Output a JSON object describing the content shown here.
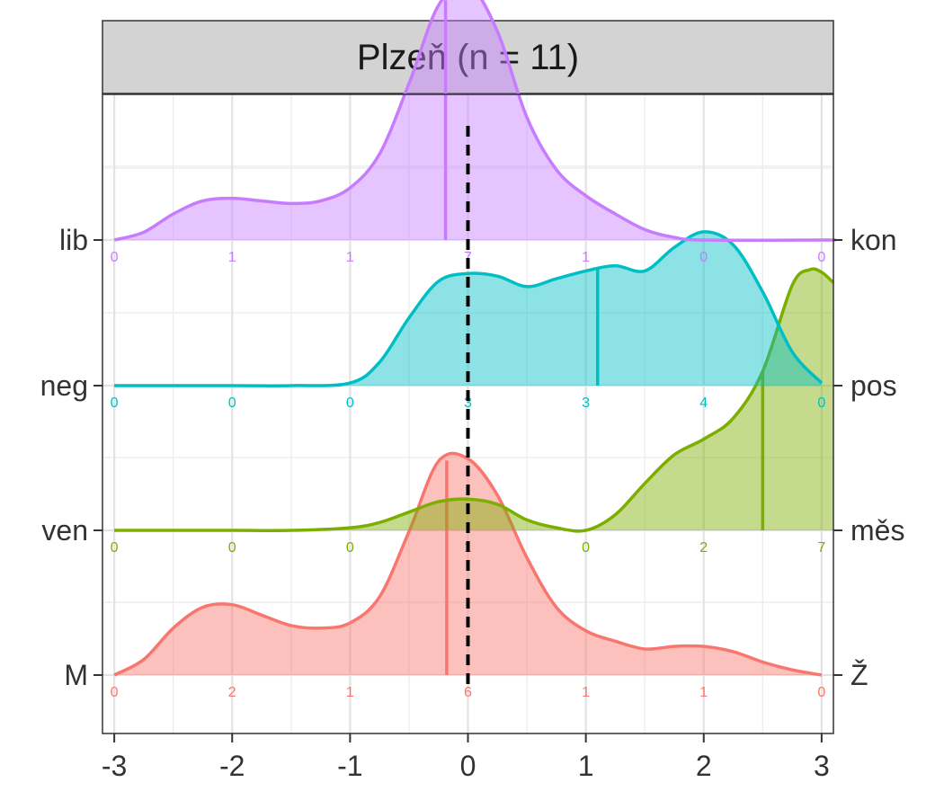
{
  "chart_data": {
    "type": "ridgeline",
    "title": "Plzeň (n = 11)",
    "xlabel": "",
    "ylabel": "",
    "xlim": [
      -3.1,
      3.1
    ],
    "x_ticks": [
      -3,
      -2,
      -1,
      0,
      1,
      2,
      3
    ],
    "x_tick_labels": [
      "-3",
      "-2",
      "-1",
      "0",
      "1",
      "2",
      "3"
    ],
    "reference_line_x": 0,
    "grid": true,
    "series": [
      {
        "left_label": "M",
        "right_label": "Ž",
        "color": "#F8766D",
        "mean": -0.18,
        "count_positions": [
          -3,
          -2,
          -1,
          0,
          1,
          2,
          3
        ],
        "counts": [
          "0",
          "2",
          "1",
          "6",
          "1",
          "1",
          "0"
        ],
        "density": [
          [
            -3.0,
            0.0
          ],
          [
            -2.75,
            0.06
          ],
          [
            -2.5,
            0.18
          ],
          [
            -2.25,
            0.26
          ],
          [
            -2.0,
            0.27
          ],
          [
            -1.75,
            0.23
          ],
          [
            -1.5,
            0.19
          ],
          [
            -1.25,
            0.18
          ],
          [
            -1.0,
            0.2
          ],
          [
            -0.75,
            0.3
          ],
          [
            -0.5,
            0.55
          ],
          [
            -0.25,
            0.82
          ],
          [
            0.0,
            0.83
          ],
          [
            0.25,
            0.69
          ],
          [
            0.5,
            0.45
          ],
          [
            0.75,
            0.26
          ],
          [
            1.0,
            0.17
          ],
          [
            1.25,
            0.13
          ],
          [
            1.5,
            0.1
          ],
          [
            1.75,
            0.11
          ],
          [
            2.0,
            0.11
          ],
          [
            2.25,
            0.09
          ],
          [
            2.5,
            0.05
          ],
          [
            2.75,
            0.02
          ],
          [
            3.0,
            0.0
          ]
        ]
      },
      {
        "left_label": "ven",
        "right_label": "měs",
        "color": "#7CAE00",
        "mean": 2.5,
        "count_positions": [
          -3,
          -2,
          -1,
          0,
          1,
          2,
          3
        ],
        "counts": [
          "0",
          "0",
          "0",
          "1",
          "0",
          "2",
          "7"
        ],
        "density": [
          [
            -3.0,
            0.0
          ],
          [
            -2.5,
            0.0
          ],
          [
            -2.0,
            0.0
          ],
          [
            -1.5,
            0.0
          ],
          [
            -1.0,
            0.01
          ],
          [
            -0.75,
            0.03
          ],
          [
            -0.5,
            0.07
          ],
          [
            -0.25,
            0.11
          ],
          [
            0.0,
            0.12
          ],
          [
            0.25,
            0.1
          ],
          [
            0.5,
            0.04
          ],
          [
            0.75,
            0.01
          ],
          [
            1.0,
            0.0
          ],
          [
            1.25,
            0.06
          ],
          [
            1.5,
            0.18
          ],
          [
            1.75,
            0.29
          ],
          [
            2.0,
            0.35
          ],
          [
            2.25,
            0.43
          ],
          [
            2.5,
            0.61
          ],
          [
            2.75,
            0.94
          ],
          [
            2.9,
            1.0
          ],
          [
            3.0,
            0.99
          ],
          [
            3.1,
            0.95
          ]
        ]
      },
      {
        "left_label": "neg",
        "right_label": "pos",
        "color": "#00BFC4",
        "mean": 1.1,
        "count_positions": [
          -3,
          -2,
          -1,
          0,
          1,
          2,
          3
        ],
        "counts": [
          "0",
          "0",
          "0",
          "3",
          "3",
          "4",
          "0"
        ],
        "density": [
          [
            -3.0,
            0.0
          ],
          [
            -2.0,
            0.0
          ],
          [
            -1.5,
            0.0
          ],
          [
            -1.0,
            0.01
          ],
          [
            -0.75,
            0.09
          ],
          [
            -0.5,
            0.26
          ],
          [
            -0.25,
            0.4
          ],
          [
            0.0,
            0.43
          ],
          [
            0.25,
            0.42
          ],
          [
            0.5,
            0.38
          ],
          [
            0.75,
            0.41
          ],
          [
            1.0,
            0.44
          ],
          [
            1.25,
            0.46
          ],
          [
            1.5,
            0.44
          ],
          [
            1.75,
            0.53
          ],
          [
            2.0,
            0.59
          ],
          [
            2.25,
            0.54
          ],
          [
            2.5,
            0.36
          ],
          [
            2.75,
            0.13
          ],
          [
            3.0,
            0.01
          ]
        ]
      },
      {
        "left_label": "lib",
        "right_label": "kon",
        "color": "#C77CFF",
        "mean": -0.19,
        "count_positions": [
          -3,
          -2,
          -1,
          0,
          1,
          2,
          3
        ],
        "counts": [
          "0",
          "1",
          "1",
          "7",
          "1",
          "0",
          "0"
        ],
        "density": [
          [
            -3.0,
            0.0
          ],
          [
            -2.75,
            0.03
          ],
          [
            -2.5,
            0.1
          ],
          [
            -2.25,
            0.15
          ],
          [
            -2.0,
            0.16
          ],
          [
            -1.75,
            0.15
          ],
          [
            -1.5,
            0.14
          ],
          [
            -1.25,
            0.15
          ],
          [
            -1.0,
            0.2
          ],
          [
            -0.75,
            0.33
          ],
          [
            -0.5,
            0.6
          ],
          [
            -0.25,
            0.9
          ],
          [
            0.0,
            0.98
          ],
          [
            0.25,
            0.8
          ],
          [
            0.5,
            0.47
          ],
          [
            0.75,
            0.27
          ],
          [
            1.0,
            0.17
          ],
          [
            1.25,
            0.1
          ],
          [
            1.5,
            0.04
          ],
          [
            1.75,
            0.01
          ],
          [
            2.0,
            0.0
          ],
          [
            3.0,
            0.0
          ],
          [
            3.1,
            0.0
          ]
        ]
      }
    ]
  }
}
